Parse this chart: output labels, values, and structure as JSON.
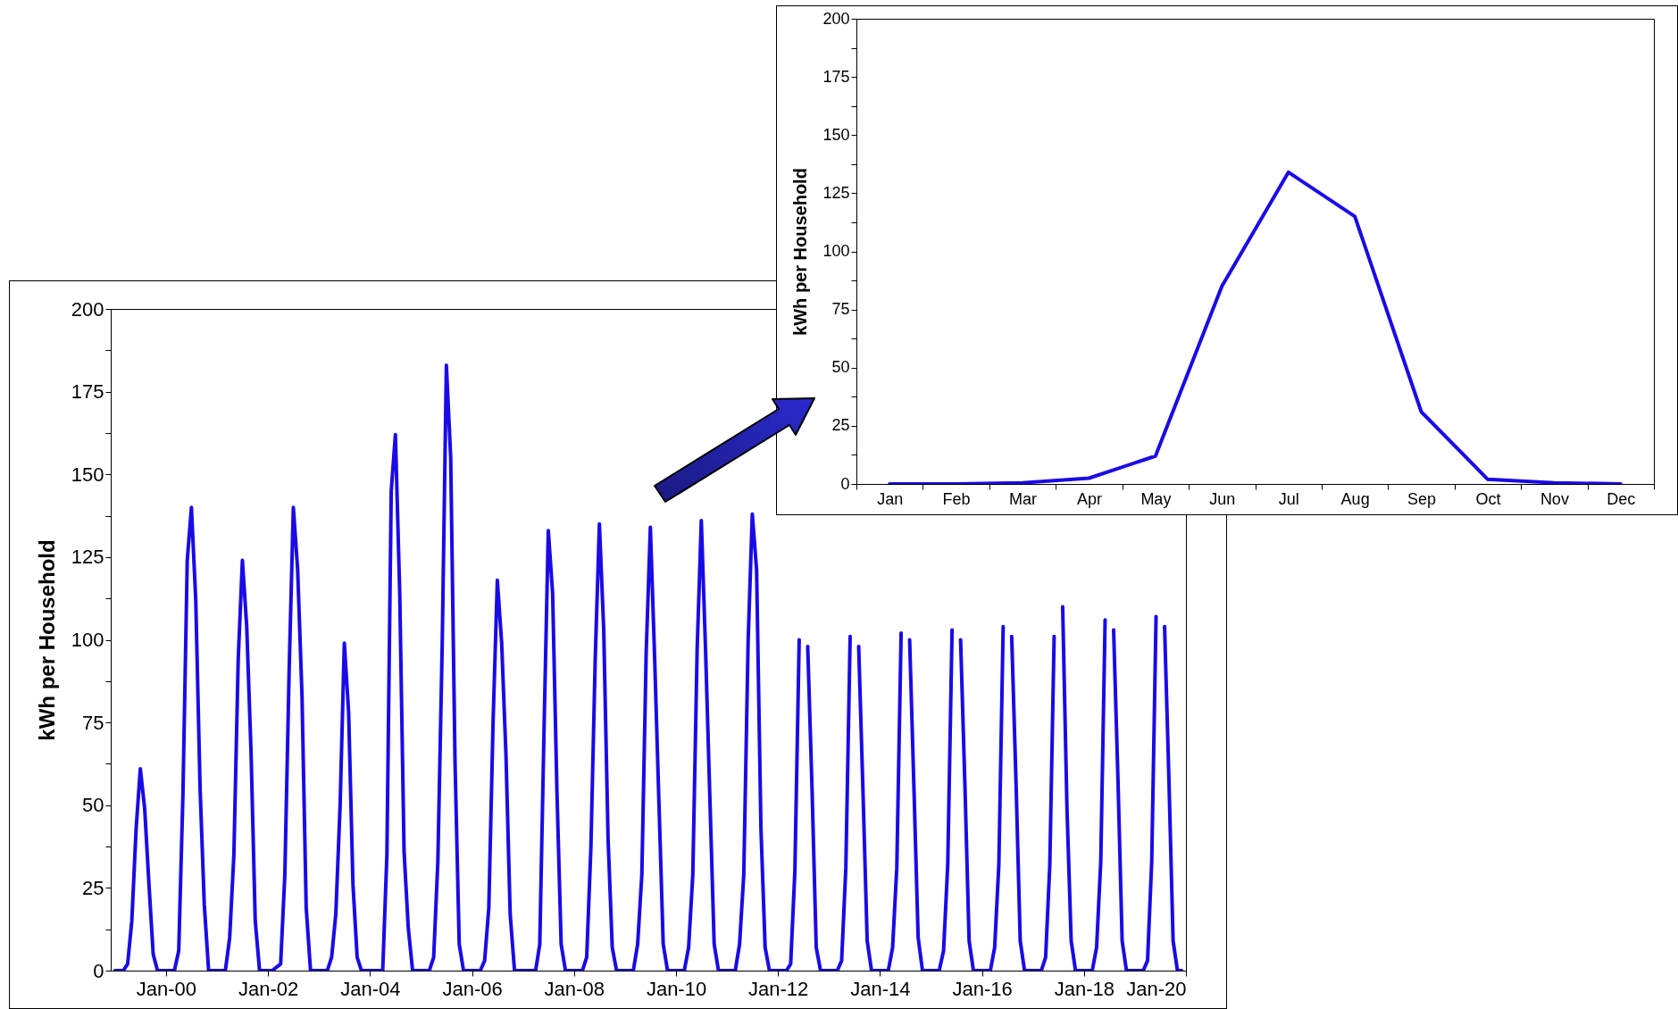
{
  "chart_data": [
    {
      "type": "line",
      "ylabel": "kWh per Household",
      "color": "#1a0ae6",
      "x": [
        "1999-01",
        "1999-02",
        "1999-03",
        "1999-04",
        "1999-05",
        "1999-06",
        "1999-07",
        "1999-08",
        "1999-09",
        "1999-10",
        "1999-11",
        "1999-12",
        "2000-01",
        "2000-02",
        "2000-03",
        "2000-04",
        "2000-05",
        "2000-06",
        "2000-07",
        "2000-08",
        "2000-09",
        "2000-10",
        "2000-11",
        "2000-12",
        "2001-01",
        "2001-02",
        "2001-03",
        "2001-04",
        "2001-05",
        "2001-06",
        "2001-07",
        "2001-08",
        "2001-09",
        "2001-10",
        "2001-11",
        "2001-12",
        "2002-01",
        "2002-02",
        "2002-03",
        "2002-04",
        "2002-05",
        "2002-06",
        "2002-07",
        "2002-08",
        "2002-09",
        "2002-10",
        "2002-11",
        "2002-12",
        "2003-01",
        "2003-02",
        "2003-03",
        "2003-04",
        "2003-05",
        "2003-06",
        "2003-07",
        "2003-08",
        "2003-09",
        "2003-10",
        "2003-11",
        "2003-12",
        "2004-01",
        "2004-02",
        "2004-03",
        "2004-04",
        "2004-05",
        "2004-06",
        "2004-07",
        "2004-08",
        "2004-09",
        "2004-10",
        "2004-11",
        "2004-12",
        "2005-01",
        "2005-02",
        "2005-03",
        "2005-04",
        "2005-05",
        "2005-06",
        "2005-07",
        "2005-08",
        "2005-09",
        "2005-10",
        "2005-11",
        "2005-12",
        "2006-01",
        "2006-02",
        "2006-03",
        "2006-04",
        "2006-05",
        "2006-06",
        "2006-07",
        "2006-08",
        "2006-09",
        "2006-10",
        "2006-11",
        "2006-12",
        "2007-01",
        "2007-02",
        "2007-03",
        "2007-04",
        "2007-05",
        "2007-06",
        "2007-07",
        "2007-08",
        "2007-09",
        "2007-10",
        "2007-11",
        "2007-12",
        "2008-01",
        "2008-02",
        "2008-03",
        "2008-04",
        "2008-05",
        "2008-06",
        "2008-07",
        "2008-08",
        "2008-09",
        "2008-10",
        "2008-11",
        "2008-12",
        "2009-01",
        "2009-02",
        "2009-03",
        "2009-04",
        "2009-05",
        "2009-06",
        "2009-07",
        "2009-08",
        "2009-09",
        "2009-10",
        "2009-11",
        "2009-12",
        "2010-01",
        "2010-02",
        "2010-03",
        "2010-04",
        "2010-05",
        "2010-06",
        "2010-07",
        "2010-08",
        "2010-09",
        "2010-10",
        "2010-11",
        "2010-12",
        "2011-01",
        "2011-02",
        "2011-03",
        "2011-04",
        "2011-05",
        "2011-06",
        "2011-07",
        "2011-08",
        "2011-09",
        "2011-10",
        "2011-11",
        "2011-12",
        "2012-01",
        "2012-02",
        "2012-03",
        "2012-04",
        "2012-05",
        "2012-06",
        "2012-07",
        "2012-08",
        "2012-09",
        "2012-10",
        "2012-11",
        "2012-12",
        "2013-01",
        "2013-02",
        "2013-03",
        "2013-04",
        "2013-05",
        "2013-06",
        "2013-07",
        "2013-08",
        "2013-09",
        "2013-10",
        "2013-11",
        "2013-12",
        "2014-01",
        "2014-02",
        "2014-03",
        "2014-04",
        "2014-05",
        "2014-06",
        "2014-07",
        "2014-08",
        "2014-09",
        "2014-10",
        "2014-11",
        "2014-12",
        "2015-01",
        "2015-02",
        "2015-03",
        "2015-04",
        "2015-05",
        "2015-06",
        "2015-07",
        "2015-08",
        "2015-09",
        "2015-10",
        "2015-11",
        "2015-12",
        "2016-01",
        "2016-02",
        "2016-03",
        "2016-04",
        "2016-05",
        "2016-06",
        "2016-07",
        "2016-08",
        "2016-09",
        "2016-10",
        "2016-11",
        "2016-12",
        "2017-01",
        "2017-02",
        "2017-03",
        "2017-04",
        "2017-05",
        "2017-06",
        "2017-07",
        "2017-08",
        "2017-09",
        "2017-10",
        "2017-11",
        "2017-12",
        "2018-01",
        "2018-02",
        "2018-03",
        "2018-04",
        "2018-05",
        "2018-06",
        "2018-07",
        "2018-08",
        "2018-09",
        "2018-10",
        "2018-11",
        "2018-12",
        "2019-01",
        "2019-02",
        "2019-03",
        "2019-04",
        "2019-05",
        "2019-06",
        "2019-07",
        "2019-08",
        "2019-09",
        "2019-10",
        "2019-11",
        "2019-12"
      ],
      "values": [
        0,
        0,
        0,
        2,
        15,
        43,
        61,
        49,
        26,
        5,
        0,
        0,
        0,
        0,
        0,
        6,
        53,
        124,
        140,
        112,
        55,
        20,
        0,
        0,
        0,
        0,
        0,
        10,
        35,
        94,
        124,
        104,
        66,
        15,
        0,
        0,
        0,
        0,
        1,
        2,
        29,
        91,
        140,
        121,
        83,
        19,
        0,
        0,
        0,
        0,
        0,
        4,
        17,
        50,
        99,
        78,
        26,
        4,
        0,
        0,
        0,
        0,
        0,
        0,
        35,
        145,
        162,
        114,
        36,
        13,
        0,
        0,
        0,
        0,
        0,
        4,
        33,
        98,
        183,
        155,
        63,
        8,
        0,
        0,
        0,
        0,
        0,
        3,
        19,
        76,
        118,
        99,
        65,
        17,
        0,
        0,
        0,
        0,
        0,
        0,
        8,
        74,
        133,
        114,
        54,
        8,
        0,
        0,
        0,
        0,
        0,
        4,
        37,
        94,
        135,
        103,
        40,
        7,
        0,
        0,
        0,
        0,
        0,
        8,
        29,
        96,
        134,
        94,
        50,
        8,
        0,
        0,
        0,
        0,
        0,
        7,
        29,
        97,
        136,
        96,
        51,
        8,
        0,
        0,
        0,
        0,
        0,
        8,
        29,
        99,
        138,
        121,
        43,
        7,
        0,
        0,
        0,
        0,
        0,
        2,
        30,
        100,
        null,
        98,
        55,
        7,
        0,
        0,
        0,
        0,
        0,
        3,
        31,
        101,
        null,
        98,
        54,
        9,
        0,
        0,
        0,
        0,
        0,
        7,
        31,
        102,
        null,
        100,
        55,
        10,
        0,
        0,
        0,
        0,
        0,
        6,
        32,
        103,
        null,
        100,
        56,
        9,
        0,
        0,
        0,
        0,
        0,
        7,
        32,
        104,
        null,
        101,
        57,
        9,
        0,
        0,
        0,
        0,
        0,
        4,
        32,
        101,
        null,
        110,
        49,
        9,
        0,
        0,
        0,
        0,
        0,
        7,
        33,
        106,
        null,
        103,
        58,
        9,
        0,
        0,
        0,
        0,
        0,
        3,
        33,
        107,
        null,
        104,
        58,
        9,
        0,
        0
      ],
      "xlim": [
        "1998-12-01",
        "2020-01-01"
      ],
      "xticks": [
        {
          "value": "2000-01",
          "label": "Jan-00"
        },
        {
          "value": "2002-01",
          "label": "Jan-02"
        },
        {
          "value": "2004-01",
          "label": "Jan-04"
        },
        {
          "value": "2006-01",
          "label": "Jan-06"
        },
        {
          "value": "2008-01",
          "label": "Jan-08"
        },
        {
          "value": "2010-01",
          "label": "Jan-10"
        },
        {
          "value": "2012-01",
          "label": "Jan-12"
        },
        {
          "value": "2014-01",
          "label": "Jan-14"
        },
        {
          "value": "2016-01",
          "label": "Jan-16"
        },
        {
          "value": "2018-01",
          "label": "Jan-18"
        },
        {
          "value": "2020-01",
          "label": "Jan-20"
        }
      ],
      "ylim": [
        0,
        200
      ],
      "yticks": [
        0,
        {
          "value": 12.5,
          "label": null
        },
        25,
        {
          "value": 37.5,
          "label": null
        },
        50,
        {
          "value": 62.5,
          "label": null
        },
        75,
        {
          "value": 87.5,
          "label": null
        },
        100,
        {
          "value": 112.5,
          "label": null
        },
        125,
        {
          "value": 137.5,
          "label": null
        },
        150,
        {
          "value": 162.5,
          "label": null
        },
        175,
        {
          "value": 187.5,
          "label": null
        },
        200
      ]
    },
    {
      "type": "line",
      "ylabel": "kWh per Household",
      "color": "#1a0ae6",
      "categories": [
        "Jan",
        "Feb",
        "Mar",
        "Apr",
        "May",
        "Jun",
        "Jul",
        "Aug",
        "Sep",
        "Oct",
        "Nov",
        "Dec"
      ],
      "values": [
        0,
        0,
        0.5,
        2.5,
        12,
        85,
        134,
        115,
        31,
        2,
        0.5,
        0
      ],
      "ylim": [
        0,
        200
      ],
      "yticks": [
        0,
        {
          "value": 12.5,
          "label": null
        },
        25,
        {
          "value": 37.5,
          "label": null
        },
        50,
        {
          "value": 62.5,
          "label": null
        },
        75,
        {
          "value": 87.5,
          "label": null
        },
        100,
        {
          "value": 112.5,
          "label": null
        },
        125,
        {
          "value": 137.5,
          "label": null
        },
        150,
        {
          "value": 162.5,
          "label": null
        },
        175,
        {
          "value": 187.5,
          "label": null
        },
        200
      ]
    }
  ]
}
